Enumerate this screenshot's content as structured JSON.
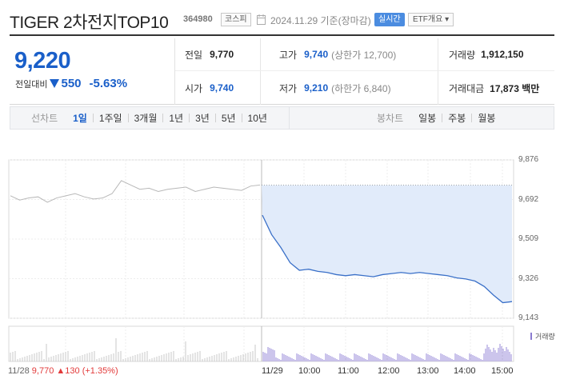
{
  "header": {
    "title": "TIGER 2차전지TOP10",
    "code": "364980",
    "market": "코스피",
    "date": "2024.11.29 기준(장마감)",
    "realtime": "실시간",
    "etf_overview": "ETF개요 ▾"
  },
  "summary": {
    "price": "9,220",
    "change_label": "전일대비",
    "change_amount": "550",
    "change_percent": "-5.63%",
    "direction": "down",
    "down_color": "#1a5fc9",
    "up_color": "#e23a3a"
  },
  "quotes": {
    "prev_close_label": "전일",
    "prev_close": "9,770",
    "high_label": "고가",
    "high": "9,740",
    "upper_limit": "(상한가 12,700)",
    "volume_label": "거래량",
    "volume": "1,912,150",
    "open_label": "시가",
    "open": "9,740",
    "low_label": "저가",
    "low": "9,210",
    "lower_limit": "(하한가 6,840)",
    "value_label": "거래대금",
    "value": "17,873 백만"
  },
  "tabs": {
    "line_label": "선차트",
    "line_tabs": [
      "1일",
      "1주일",
      "3개월",
      "1년",
      "3년",
      "5년",
      "10년"
    ],
    "line_active": 0,
    "candle_label": "봉차트",
    "candle_tabs": [
      "일봉",
      "주봉",
      "월봉"
    ]
  },
  "chart": {
    "y_ticks": [
      "9,876",
      "9,692",
      "9,509",
      "9,326",
      "9,143"
    ],
    "x_ticks": [
      "11/29",
      "10:00",
      "11:00",
      "12:00",
      "13:00",
      "14:00",
      "15:00"
    ],
    "volume_label": "거래량",
    "prev_day_date": "11/28",
    "prev_day_price": "9,770",
    "prev_day_change": "▲130",
    "prev_day_pct": "(+1.35%)"
  },
  "chart_data": {
    "type": "line",
    "title": "",
    "xlabel": "",
    "ylabel": "",
    "ylim": [
      9143,
      9876
    ],
    "grid": true,
    "series": [
      {
        "x": [
          "09:00",
          "09:05",
          "09:15",
          "09:30",
          "09:45",
          "10:00",
          "10:15",
          "10:30",
          "10:45",
          "11:00",
          "11:15",
          "11:30",
          "11:45",
          "12:00",
          "12:15",
          "12:30",
          "12:45",
          "13:00",
          "13:15",
          "13:30",
          "13:45",
          "14:00",
          "14:15",
          "14:30",
          "14:45",
          "15:00",
          "15:10",
          "15:20"
        ],
        "values": [
          9620,
          9530,
          9470,
          9400,
          9365,
          9370,
          9360,
          9355,
          9345,
          9340,
          9345,
          9340,
          9335,
          9345,
          9350,
          9355,
          9350,
          9355,
          9350,
          9345,
          9340,
          9330,
          9325,
          9315,
          9290,
          9250,
          9215,
          9220
        ]
      }
    ],
    "prev_day_values": [
      9710,
      9690,
      9700,
      9705,
      9680,
      9700,
      9710,
      9720,
      9705,
      9695,
      9700,
      9720,
      9780,
      9760,
      9740,
      9745,
      9730,
      9740,
      9745,
      9750,
      9730,
      9740,
      9750,
      9745,
      9740,
      9735,
      9755,
      9760
    ],
    "prev_close": 9770
  }
}
